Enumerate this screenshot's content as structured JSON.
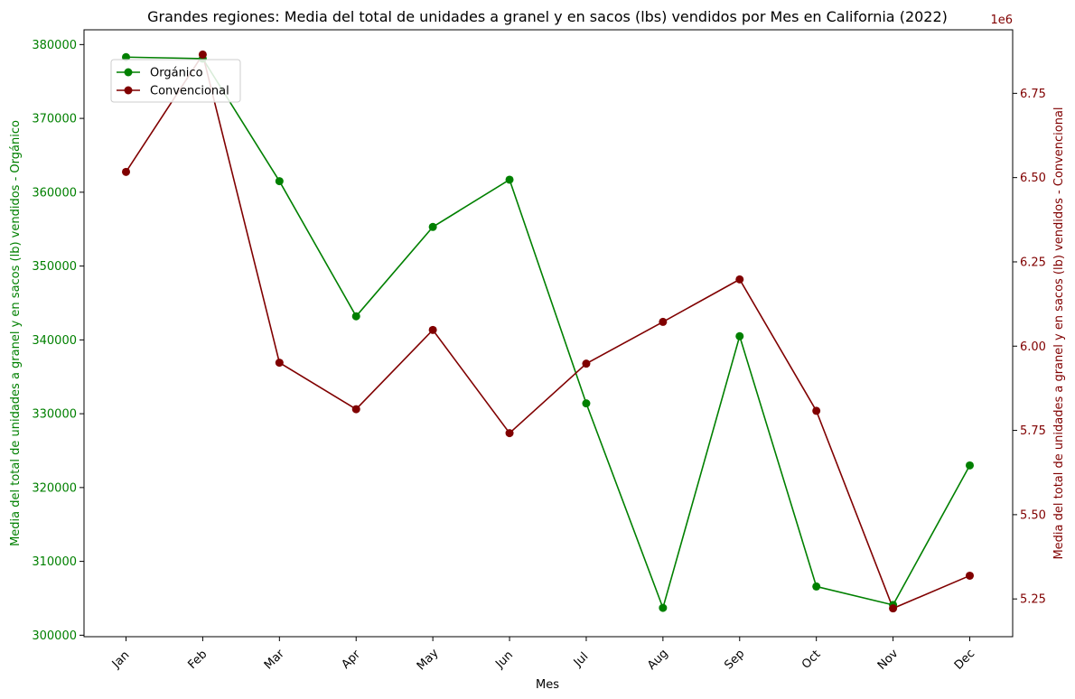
{
  "chart_data": {
    "type": "line",
    "title": "Grandes regiones: Media del total de unidades a granel y en sacos (lbs) vendidos por Mes en California (2022)",
    "xlabel": "Mes",
    "ylabel_left": "Media del total de unidades a granel y en sacos (lb) vendidos - Orgánico",
    "ylabel_right": "Media del total de unidades a granel y en sacos (lb) vendidos - Convencional",
    "right_axis_offset": "1e6",
    "categories": [
      "Jan",
      "Feb",
      "Mar",
      "Apr",
      "May",
      "Jun",
      "Jul",
      "Aug",
      "Sep",
      "Oct",
      "Nov",
      "Dec"
    ],
    "y_left": {
      "ticks": [
        300000,
        310000,
        320000,
        330000,
        340000,
        350000,
        360000,
        370000,
        380000
      ],
      "tick_labels": [
        "300000",
        "310000",
        "320000",
        "330000",
        "340000",
        "350000",
        "360000",
        "370000",
        "380000"
      ],
      "lim": [
        299800,
        382000
      ],
      "color": "#008000"
    },
    "y_right": {
      "ticks": [
        5.25,
        5.5,
        5.75,
        6.0,
        6.25,
        6.5,
        6.75
      ],
      "tick_labels": [
        "5.25",
        "5.50",
        "5.75",
        "6.00",
        "6.25",
        "6.50",
        "6.75"
      ],
      "lim": [
        5.138,
        6.9385
      ],
      "color": "#800000"
    },
    "series": [
      {
        "name": "Orgánico",
        "axis": "left",
        "color": "#008000",
        "values": [
          378300,
          378100,
          361500,
          343200,
          355300,
          361700,
          331400,
          303700,
          340500,
          306600,
          304100,
          323000
        ]
      },
      {
        "name": "Convencional",
        "axis": "right",
        "color": "#800000",
        "values": [
          6.517,
          6.865,
          5.951,
          5.813,
          6.048,
          5.742,
          5.948,
          6.072,
          6.198,
          5.808,
          5.222,
          5.319
        ]
      }
    ],
    "legend_position": "upper-left",
    "grid": false
  }
}
